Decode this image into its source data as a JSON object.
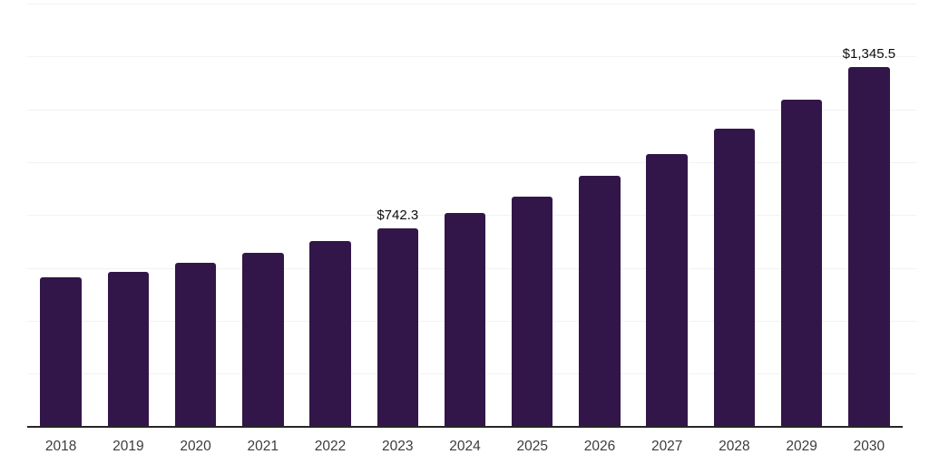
{
  "chart_data": {
    "type": "bar",
    "title": "",
    "xlabel": "",
    "ylabel": "",
    "categories": [
      "2018",
      "2019",
      "2020",
      "2021",
      "2022",
      "2023",
      "2024",
      "2025",
      "2026",
      "2027",
      "2028",
      "2029",
      "2030"
    ],
    "values": [
      557.4,
      577.7,
      611.6,
      650.6,
      696.1,
      742.3,
      798.6,
      861.3,
      936.9,
      1018.2,
      1113.1,
      1221.4,
      1345.5
    ],
    "data_labels": [
      "",
      "",
      "",
      "",
      "",
      "$742.3",
      "",
      "",
      "",
      "",
      "",
      "",
      "$1,345.5"
    ],
    "ylim": [
      0,
      1600
    ],
    "grid": "horizontal-faint",
    "legend_position": "none",
    "colors": {
      "bar": "#321649",
      "axis": "#262626",
      "gridline": "#f2f2f2",
      "tick_label": "#3c3c3c",
      "data_label": "#0d0d0d",
      "background": "#ffffff"
    }
  }
}
